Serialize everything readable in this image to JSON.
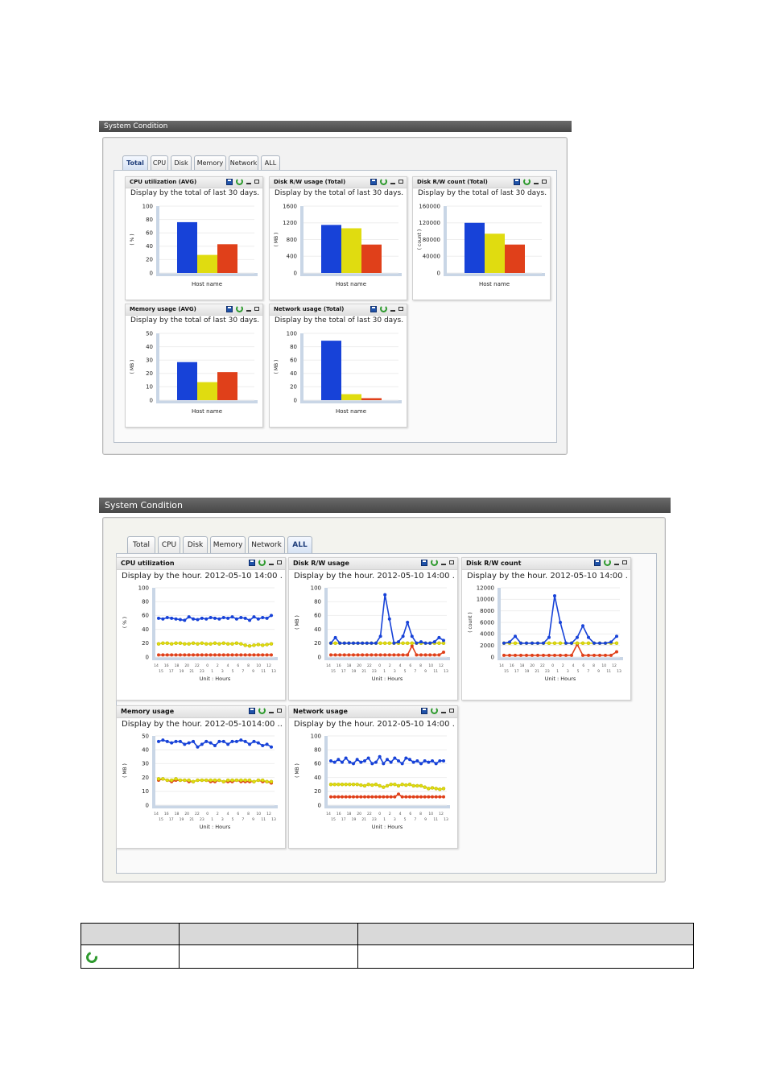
{
  "window1": {
    "title": "System Condition",
    "tabs": [
      "Total",
      "CPU",
      "Disk",
      "Memory",
      "Network",
      "ALL"
    ],
    "active_tab": "Total",
    "widgets": [
      {
        "title": "CPU utilization (AVG)",
        "desc": "Display by the total of last 30 days. ...",
        "chart_index": 0
      },
      {
        "title": "Disk R/W usage (Total)",
        "desc": "Display by the total of last 30 days. ...",
        "chart_index": 1
      },
      {
        "title": "Disk R/W count (Total)",
        "desc": "Display by the total of last 30 days. ...",
        "chart_index": 2
      },
      {
        "title": "Memory usage (AVG)",
        "desc": "Display by the total of last 30 days. ...",
        "chart_index": 3
      },
      {
        "title": "Network usage (Total)",
        "desc": "Display by the total of last 30 days. ...",
        "chart_index": 4
      }
    ]
  },
  "window2": {
    "title": "System Condition",
    "tabs": [
      "Total",
      "CPU",
      "Disk",
      "Memory",
      "Network",
      "ALL"
    ],
    "active_tab": "ALL",
    "widgets": [
      {
        "title": "CPU utilization",
        "desc": "Display by the hour. 2012-05-10 14:00 ...",
        "chart_index": 5
      },
      {
        "title": "Disk R/W usage",
        "desc": "Display by the hour. 2012-05-10 14:00 ...",
        "chart_index": 6
      },
      {
        "title": "Disk R/W count",
        "desc": "Display by the hour. 2012-05-10 14:00 ...",
        "chart_index": 7
      },
      {
        "title": "Memory usage",
        "desc": "Display by the hour. 2012-05-1014:00 ...",
        "chart_index": 8
      },
      {
        "title": "Network usage",
        "desc": "Display by the hour. 2012-05-10 14:00 ...",
        "chart_index": 9
      }
    ]
  },
  "legend_table": {
    "header": [
      "",
      "",
      ""
    ],
    "rows": [
      {
        "icon": "refresh-icon",
        "c2": "",
        "c3": ""
      }
    ]
  },
  "colors": {
    "blue": "#1742d8",
    "yellow": "#e0dc10",
    "red": "#e0401a",
    "axis": "#c9d6e6"
  },
  "chart_data": [
    {
      "type": "bar",
      "xlabel": "Host name",
      "ylabel": "( % )",
      "ylim": [
        0,
        100
      ],
      "yticks": [
        "0",
        "20",
        "40",
        "60",
        "80",
        "100"
      ],
      "values": [
        76,
        27,
        43
      ]
    },
    {
      "type": "bar",
      "xlabel": "Host name",
      "ylabel": "( MB )",
      "ylim": [
        0,
        1600
      ],
      "yticks": [
        "0",
        "400",
        "800",
        "1200",
        "1600"
      ],
      "values": [
        1150,
        1070,
        680
      ]
    },
    {
      "type": "bar",
      "xlabel": "Host name",
      "ylabel": "( count )",
      "ylim": [
        0,
        160000
      ],
      "yticks": [
        "0",
        "40000",
        "80000",
        "120000",
        "160000"
      ],
      "values": [
        120000,
        94000,
        68000
      ]
    },
    {
      "type": "bar",
      "xlabel": "Host name",
      "ylabel": "( MB )",
      "ylim": [
        0,
        50
      ],
      "yticks": [
        "0",
        "10",
        "20",
        "30",
        "40",
        "50"
      ],
      "values": [
        28.5,
        13.5,
        21
      ]
    },
    {
      "type": "bar",
      "xlabel": "Host name",
      "ylabel": "( MB )",
      "ylim": [
        0,
        100
      ],
      "yticks": [
        "0",
        "20",
        "40",
        "60",
        "80",
        "100"
      ],
      "values": [
        89,
        9,
        3
      ]
    },
    {
      "type": "line",
      "xlabel": "Unit : Hours",
      "ylabel": "( % )",
      "ylim": [
        0,
        100
      ],
      "yticks": [
        "0",
        "20",
        "40",
        "60",
        "80",
        "100"
      ],
      "xticks_top": [
        "14",
        "16",
        "18",
        "20",
        "22",
        "0",
        "2",
        "4",
        "6",
        "8",
        "10",
        "12"
      ],
      "xticks_bottom": [
        "15",
        "17",
        "19",
        "21",
        "23",
        "1",
        "3",
        "5",
        "7",
        "9",
        "11",
        "13"
      ],
      "series": [
        {
          "values": [
            56,
            55,
            57,
            56,
            55,
            54,
            53,
            58,
            55,
            54,
            56,
            55,
            57,
            56,
            55,
            57,
            56,
            58,
            55,
            57,
            56,
            53,
            58,
            55,
            57,
            56,
            60
          ]
        },
        {
          "values": [
            19,
            20,
            20,
            19,
            20,
            20,
            19,
            19,
            20,
            19,
            20,
            19,
            19,
            20,
            19,
            20,
            19,
            19,
            20,
            19,
            17,
            16,
            17,
            18,
            17,
            18,
            19
          ]
        },
        {
          "values": [
            3,
            3,
            3,
            3,
            3,
            3,
            3,
            3,
            3,
            3,
            3,
            3,
            3,
            3,
            3,
            3,
            3,
            3,
            3,
            3,
            3,
            3,
            3,
            3,
            3,
            3,
            3
          ]
        }
      ]
    },
    {
      "type": "line",
      "xlabel": "Unit : Hours",
      "ylabel": "( MB )",
      "ylim": [
        0,
        100
      ],
      "yticks": [
        "0",
        "20",
        "40",
        "60",
        "80",
        "100"
      ],
      "xticks_top": [
        "14",
        "16",
        "18",
        "20",
        "22",
        "0",
        "2",
        "4",
        "6",
        "8",
        "10",
        "12"
      ],
      "xticks_bottom": [
        "15",
        "17",
        "19",
        "21",
        "23",
        "1",
        "3",
        "5",
        "7",
        "9",
        "11",
        "13"
      ],
      "series": [
        {
          "values": [
            20,
            28,
            20,
            20,
            20,
            20,
            20,
            20,
            20,
            20,
            20,
            30,
            90,
            55,
            20,
            22,
            30,
            50,
            30,
            20,
            22,
            20,
            20,
            22,
            28,
            24
          ]
        },
        {
          "values": [
            20,
            20,
            20,
            20,
            20,
            20,
            20,
            20,
            20,
            20,
            20,
            20,
            20,
            20,
            20,
            20,
            20,
            20,
            20,
            20,
            20,
            20,
            20,
            20,
            20,
            20
          ]
        },
        {
          "values": [
            3,
            3,
            3,
            3,
            3,
            3,
            3,
            3,
            3,
            3,
            3,
            3,
            3,
            3,
            3,
            3,
            3,
            3,
            16,
            3,
            3,
            3,
            3,
            3,
            3,
            7
          ]
        }
      ]
    },
    {
      "type": "line",
      "xlabel": "Unit : Hours",
      "ylabel": "( count )",
      "ylim": [
        0,
        12000
      ],
      "yticks": [
        "0",
        "2000",
        "4000",
        "6000",
        "8000",
        "10000",
        "12000"
      ],
      "xticks_top": [
        "14",
        "16",
        "18",
        "20",
        "22",
        "0",
        "2",
        "4",
        "6",
        "8",
        "10",
        "12"
      ],
      "xticks_bottom": [
        "15",
        "17",
        "19",
        "21",
        "23",
        "1",
        "3",
        "5",
        "7",
        "9",
        "11",
        "13"
      ],
      "series": [
        {
          "values": [
            2400,
            2600,
            3600,
            2400,
            2400,
            2400,
            2400,
            2400,
            3400,
            10600,
            6000,
            2400,
            2400,
            3400,
            5400,
            3400,
            2400,
            2400,
            2400,
            2600,
            3600
          ]
        },
        {
          "values": [
            2400,
            2400,
            2400,
            2400,
            2400,
            2400,
            2400,
            2400,
            2400,
            2400,
            2400,
            2400,
            2400,
            2400,
            2400,
            2400,
            2400,
            2400,
            2400,
            2400,
            2400
          ]
        },
        {
          "values": [
            300,
            300,
            300,
            300,
            300,
            300,
            300,
            300,
            300,
            300,
            300,
            300,
            300,
            2200,
            300,
            300,
            300,
            300,
            300,
            300,
            900
          ]
        }
      ]
    },
    {
      "type": "line",
      "xlabel": "Unit : Hours",
      "ylabel": "( MB )",
      "ylim": [
        0,
        50
      ],
      "yticks": [
        "0",
        "10",
        "20",
        "30",
        "40",
        "50"
      ],
      "xticks_top": [
        "14",
        "16",
        "18",
        "20",
        "22",
        "0",
        "2",
        "4",
        "6",
        "8",
        "10",
        "12"
      ],
      "xticks_bottom": [
        "15",
        "17",
        "19",
        "21",
        "23",
        "1",
        "3",
        "5",
        "7",
        "9",
        "11",
        "13"
      ],
      "series": [
        {
          "values": [
            46,
            47,
            46,
            45,
            46,
            46,
            44,
            45,
            46,
            42,
            44,
            46,
            45,
            43,
            46,
            46,
            44,
            46,
            46,
            47,
            46,
            44,
            46,
            45,
            43,
            44,
            42
          ]
        },
        {
          "values": [
            19,
            19,
            18,
            18,
            19,
            18,
            18,
            18,
            17,
            18,
            18,
            18,
            18,
            18,
            18,
            17,
            18,
            18,
            18,
            18,
            18,
            18,
            17,
            18,
            18,
            17,
            17
          ]
        },
        {
          "values": [
            18,
            19,
            18,
            17,
            18,
            18,
            18,
            17,
            17,
            18,
            18,
            18,
            17,
            17,
            18,
            17,
            17,
            17,
            18,
            17,
            17,
            17,
            17,
            18,
            17,
            17,
            16
          ]
        }
      ]
    },
    {
      "type": "line",
      "xlabel": "Unit : Hours",
      "ylabel": "( MB )",
      "ylim": [
        0,
        100
      ],
      "yticks": [
        "0",
        "20",
        "40",
        "60",
        "80",
        "100"
      ],
      "xticks_top": [
        "14",
        "16",
        "18",
        "20",
        "22",
        "0",
        "2",
        "4",
        "6",
        "8",
        "10",
        "12"
      ],
      "xticks_bottom": [
        "15",
        "17",
        "19",
        "21",
        "23",
        "1",
        "3",
        "5",
        "7",
        "9",
        "11",
        "13"
      ],
      "series": [
        {
          "values": [
            64,
            62,
            66,
            62,
            68,
            62,
            60,
            66,
            62,
            64,
            68,
            60,
            62,
            70,
            60,
            66,
            62,
            68,
            64,
            60,
            68,
            66,
            62,
            64,
            60,
            64,
            62,
            64,
            60,
            64,
            64
          ]
        },
        {
          "values": [
            30,
            30,
            30,
            30,
            30,
            30,
            30,
            30,
            29,
            28,
            30,
            29,
            30,
            28,
            26,
            28,
            30,
            30,
            28,
            30,
            29,
            30,
            28,
            28,
            28,
            26,
            24,
            25,
            24,
            23,
            24
          ]
        },
        {
          "values": [
            12,
            12,
            12,
            12,
            12,
            12,
            12,
            12,
            12,
            12,
            12,
            12,
            12,
            12,
            12,
            12,
            12,
            12,
            16,
            12,
            12,
            12,
            12,
            12,
            12,
            12,
            12,
            12,
            12,
            12,
            12
          ]
        }
      ]
    }
  ]
}
